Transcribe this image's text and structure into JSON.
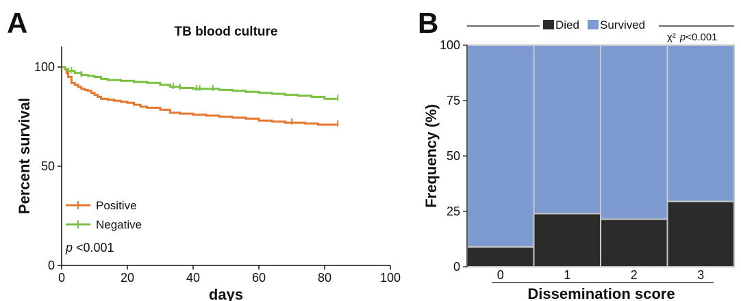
{
  "panel_a": {
    "letter": "A",
    "pvalue_prefix": "p",
    "pvalue_text": " <0.001"
  },
  "panel_b": {
    "letter": "B",
    "stat_symbol": "χ²",
    "pvalue_prefix": "p",
    "pvalue_text": "<0.001"
  },
  "colors": {
    "positive": "#e8772e",
    "negative": "#7ac143",
    "died": "#2b2b2b",
    "survived": "#7d9bd1",
    "axis": "#111111"
  },
  "chart_data": [
    {
      "type": "line",
      "subtype": "kaplan-meier",
      "title": "TB blood culture",
      "xlabel": "days",
      "ylabel": "Percent survival",
      "xlim": [
        0,
        100
      ],
      "ylim": [
        0,
        100
      ],
      "x_ticks": [
        "0",
        "20",
        "40",
        "60",
        "80",
        "100"
      ],
      "y_ticks": [
        "0",
        "50",
        "100"
      ],
      "legend_placement": "lower-left",
      "series": [
        {
          "name": "Positive",
          "color": "#e8772e",
          "points": [
            [
              0,
              100
            ],
            [
              1,
              99
            ],
            [
              1.5,
              97
            ],
            [
              2,
              95
            ],
            [
              3,
              92
            ],
            [
              4,
              91
            ],
            [
              5,
              90
            ],
            [
              6,
              89
            ],
            [
              7,
              88.5
            ],
            [
              8,
              88
            ],
            [
              9,
              87
            ],
            [
              10,
              86
            ],
            [
              11,
              85
            ],
            [
              12,
              84
            ],
            [
              14,
              83.5
            ],
            [
              16,
              83
            ],
            [
              18,
              82.5
            ],
            [
              20,
              82
            ],
            [
              22,
              81
            ],
            [
              24,
              80
            ],
            [
              26,
              79.5
            ],
            [
              28,
              79.5
            ],
            [
              30,
              78.5
            ],
            [
              33,
              77
            ],
            [
              36,
              76.5
            ],
            [
              40,
              76
            ],
            [
              44,
              75.5
            ],
            [
              48,
              75
            ],
            [
              52,
              74.5
            ],
            [
              56,
              74
            ],
            [
              60,
              73
            ],
            [
              64,
              72.5
            ],
            [
              68,
              72
            ],
            [
              74,
              71.5
            ],
            [
              78,
              71
            ],
            [
              84,
              71
            ]
          ],
          "censor_x": [
            70,
            84
          ]
        },
        {
          "name": "Negative",
          "color": "#7ac143",
          "points": [
            [
              0,
              100
            ],
            [
              1,
              99
            ],
            [
              2,
              98
            ],
            [
              4,
              97
            ],
            [
              6,
              96
            ],
            [
              8,
              95.5
            ],
            [
              10,
              95
            ],
            [
              12,
              94
            ],
            [
              14,
              93.5
            ],
            [
              18,
              93
            ],
            [
              22,
              92.5
            ],
            [
              26,
              92
            ],
            [
              30,
              91
            ],
            [
              33,
              90
            ],
            [
              36,
              89.5
            ],
            [
              40,
              89
            ],
            [
              44,
              89
            ],
            [
              48,
              88.5
            ],
            [
              52,
              88
            ],
            [
              56,
              87.5
            ],
            [
              60,
              87
            ],
            [
              64,
              86.5
            ],
            [
              68,
              86
            ],
            [
              72,
              85.5
            ],
            [
              76,
              85
            ],
            [
              80,
              84
            ],
            [
              84,
              84
            ]
          ],
          "censor_x": [
            3,
            6,
            34,
            36,
            41,
            42,
            46,
            84
          ]
        }
      ]
    },
    {
      "type": "bar",
      "subtype": "stacked-percent",
      "xlabel": "Dissemination score",
      "ylabel": "Frequency (%)",
      "ylim": [
        0,
        100
      ],
      "y_ticks": [
        "0",
        "25",
        "50",
        "75",
        "100"
      ],
      "categories": [
        "0",
        "1",
        "2",
        "3"
      ],
      "legend_placement": "top",
      "series": [
        {
          "name": "Died",
          "color": "#2b2b2b",
          "values": [
            9,
            24,
            21.5,
            29.5
          ]
        },
        {
          "name": "Survived",
          "color": "#7d9bd1",
          "values": [
            91,
            76,
            78.5,
            70.5
          ]
        }
      ]
    }
  ]
}
